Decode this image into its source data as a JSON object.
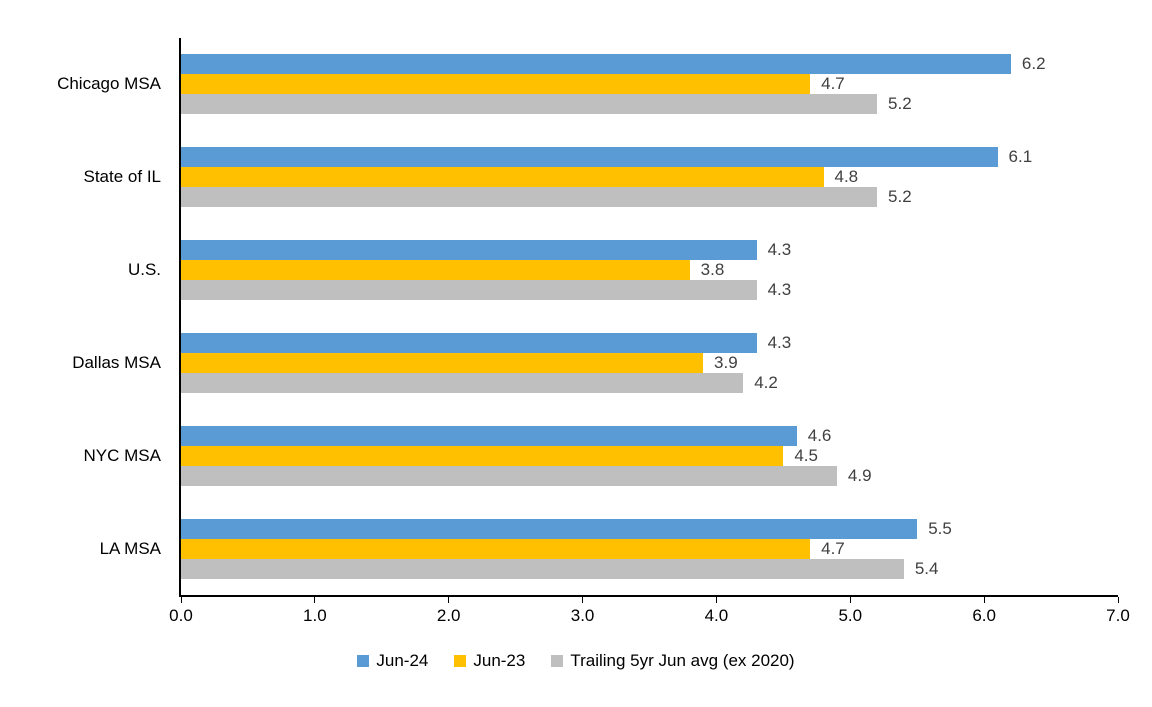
{
  "chart_data": {
    "type": "bar",
    "orientation": "horizontal",
    "title": "",
    "xlabel": "",
    "ylabel": "",
    "categories": [
      "Chicago MSA",
      "State of IL",
      "U.S.",
      "Dallas MSA",
      "NYC MSA",
      "LA MSA"
    ],
    "series": [
      {
        "name": "Jun-24",
        "color": "#5B9BD5",
        "values": [
          6.2,
          6.1,
          4.3,
          4.3,
          4.6,
          5.5
        ]
      },
      {
        "name": "Jun-23",
        "color": "#FFC000",
        "values": [
          4.7,
          4.8,
          3.8,
          3.9,
          4.5,
          4.7
        ]
      },
      {
        "name": "Trailing 5yr Jun avg (ex 2020)",
        "color": "#BFBFBF",
        "values": [
          5.2,
          5.2,
          4.3,
          4.2,
          4.9,
          5.4
        ]
      }
    ],
    "xlim": [
      0,
      7
    ],
    "xticks": [
      "0.0",
      "1.0",
      "2.0",
      "3.0",
      "4.0",
      "5.0",
      "6.0",
      "7.0"
    ],
    "grid": false,
    "data_labels": true,
    "data_label_color": "#404040",
    "axis_color": "#000000",
    "legend_position": "bottom"
  }
}
